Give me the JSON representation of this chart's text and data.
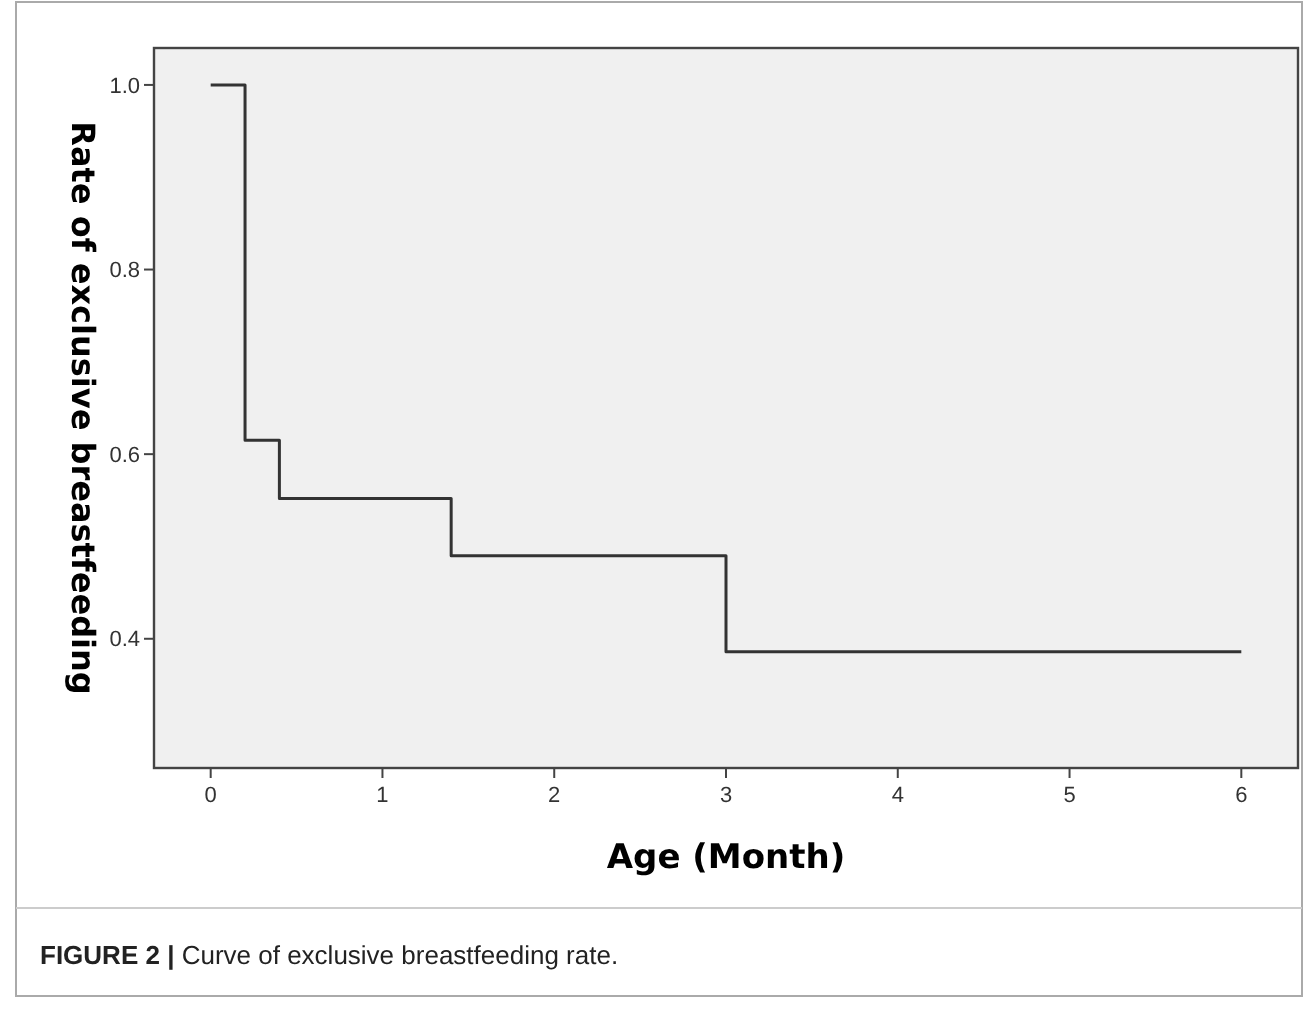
{
  "chart_data": {
    "type": "step",
    "xlabel": "Age (Month)",
    "ylabel": "Rate of exclusive breastfeeding",
    "x": [
      0,
      0.2,
      0.4,
      1.4,
      3,
      6
    ],
    "series": [
      {
        "color": "#333333",
        "values": [
          1.0,
          0.615,
          0.552,
          0.49,
          0.386,
          0.386
        ]
      }
    ],
    "xlim": [
      -0.33,
      6.33
    ],
    "xticks": [
      0,
      1,
      2,
      3,
      4,
      5,
      6
    ],
    "ylim": [
      0.26,
      1.04
    ],
    "yticks": [
      {
        "value": 0.4,
        "label": "0.4"
      },
      {
        "value": 0.6,
        "label": "0.6"
      },
      {
        "value": 0.8,
        "label": "0.8"
      },
      {
        "value": 1,
        "label": "1.0"
      }
    ],
    "grid": false,
    "marker": "none",
    "annotations": [
      "FIGURE 2 | Curve of exclusive breastfeeding rate."
    ]
  }
}
